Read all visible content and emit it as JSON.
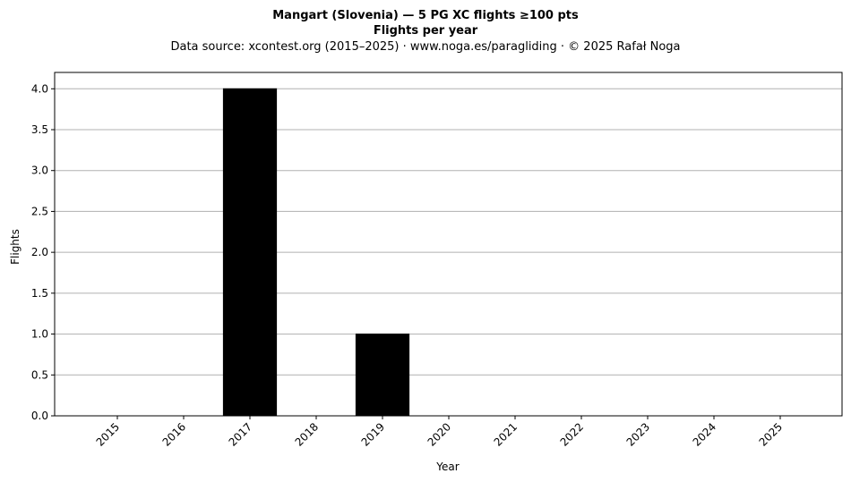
{
  "chart_data": {
    "type": "bar",
    "title": "Mangart (Slovenia)  —  5 PG XC flights ≥100 pts",
    "subtitle": "Flights per year",
    "source": "Data source: xcontest.org (2015–2025)  ·  www.noga.es/paragliding  ·  © 2025 Rafał Noga",
    "categories": [
      "2015",
      "2016",
      "2017",
      "2018",
      "2019",
      "2020",
      "2021",
      "2022",
      "2023",
      "2024",
      "2025"
    ],
    "values": [
      0,
      0,
      4,
      0,
      1,
      0,
      0,
      0,
      0,
      0,
      0
    ],
    "xlabel": "Year",
    "ylabel": "Flights",
    "ylim": [
      0,
      4.2
    ],
    "yticks": [
      "0.0",
      "0.5",
      "1.0",
      "1.5",
      "2.0",
      "2.5",
      "3.0",
      "3.5",
      "4.0"
    ],
    "grid": "horizontal",
    "bar_color": "#000000",
    "grid_color": "#b0b0b0"
  }
}
